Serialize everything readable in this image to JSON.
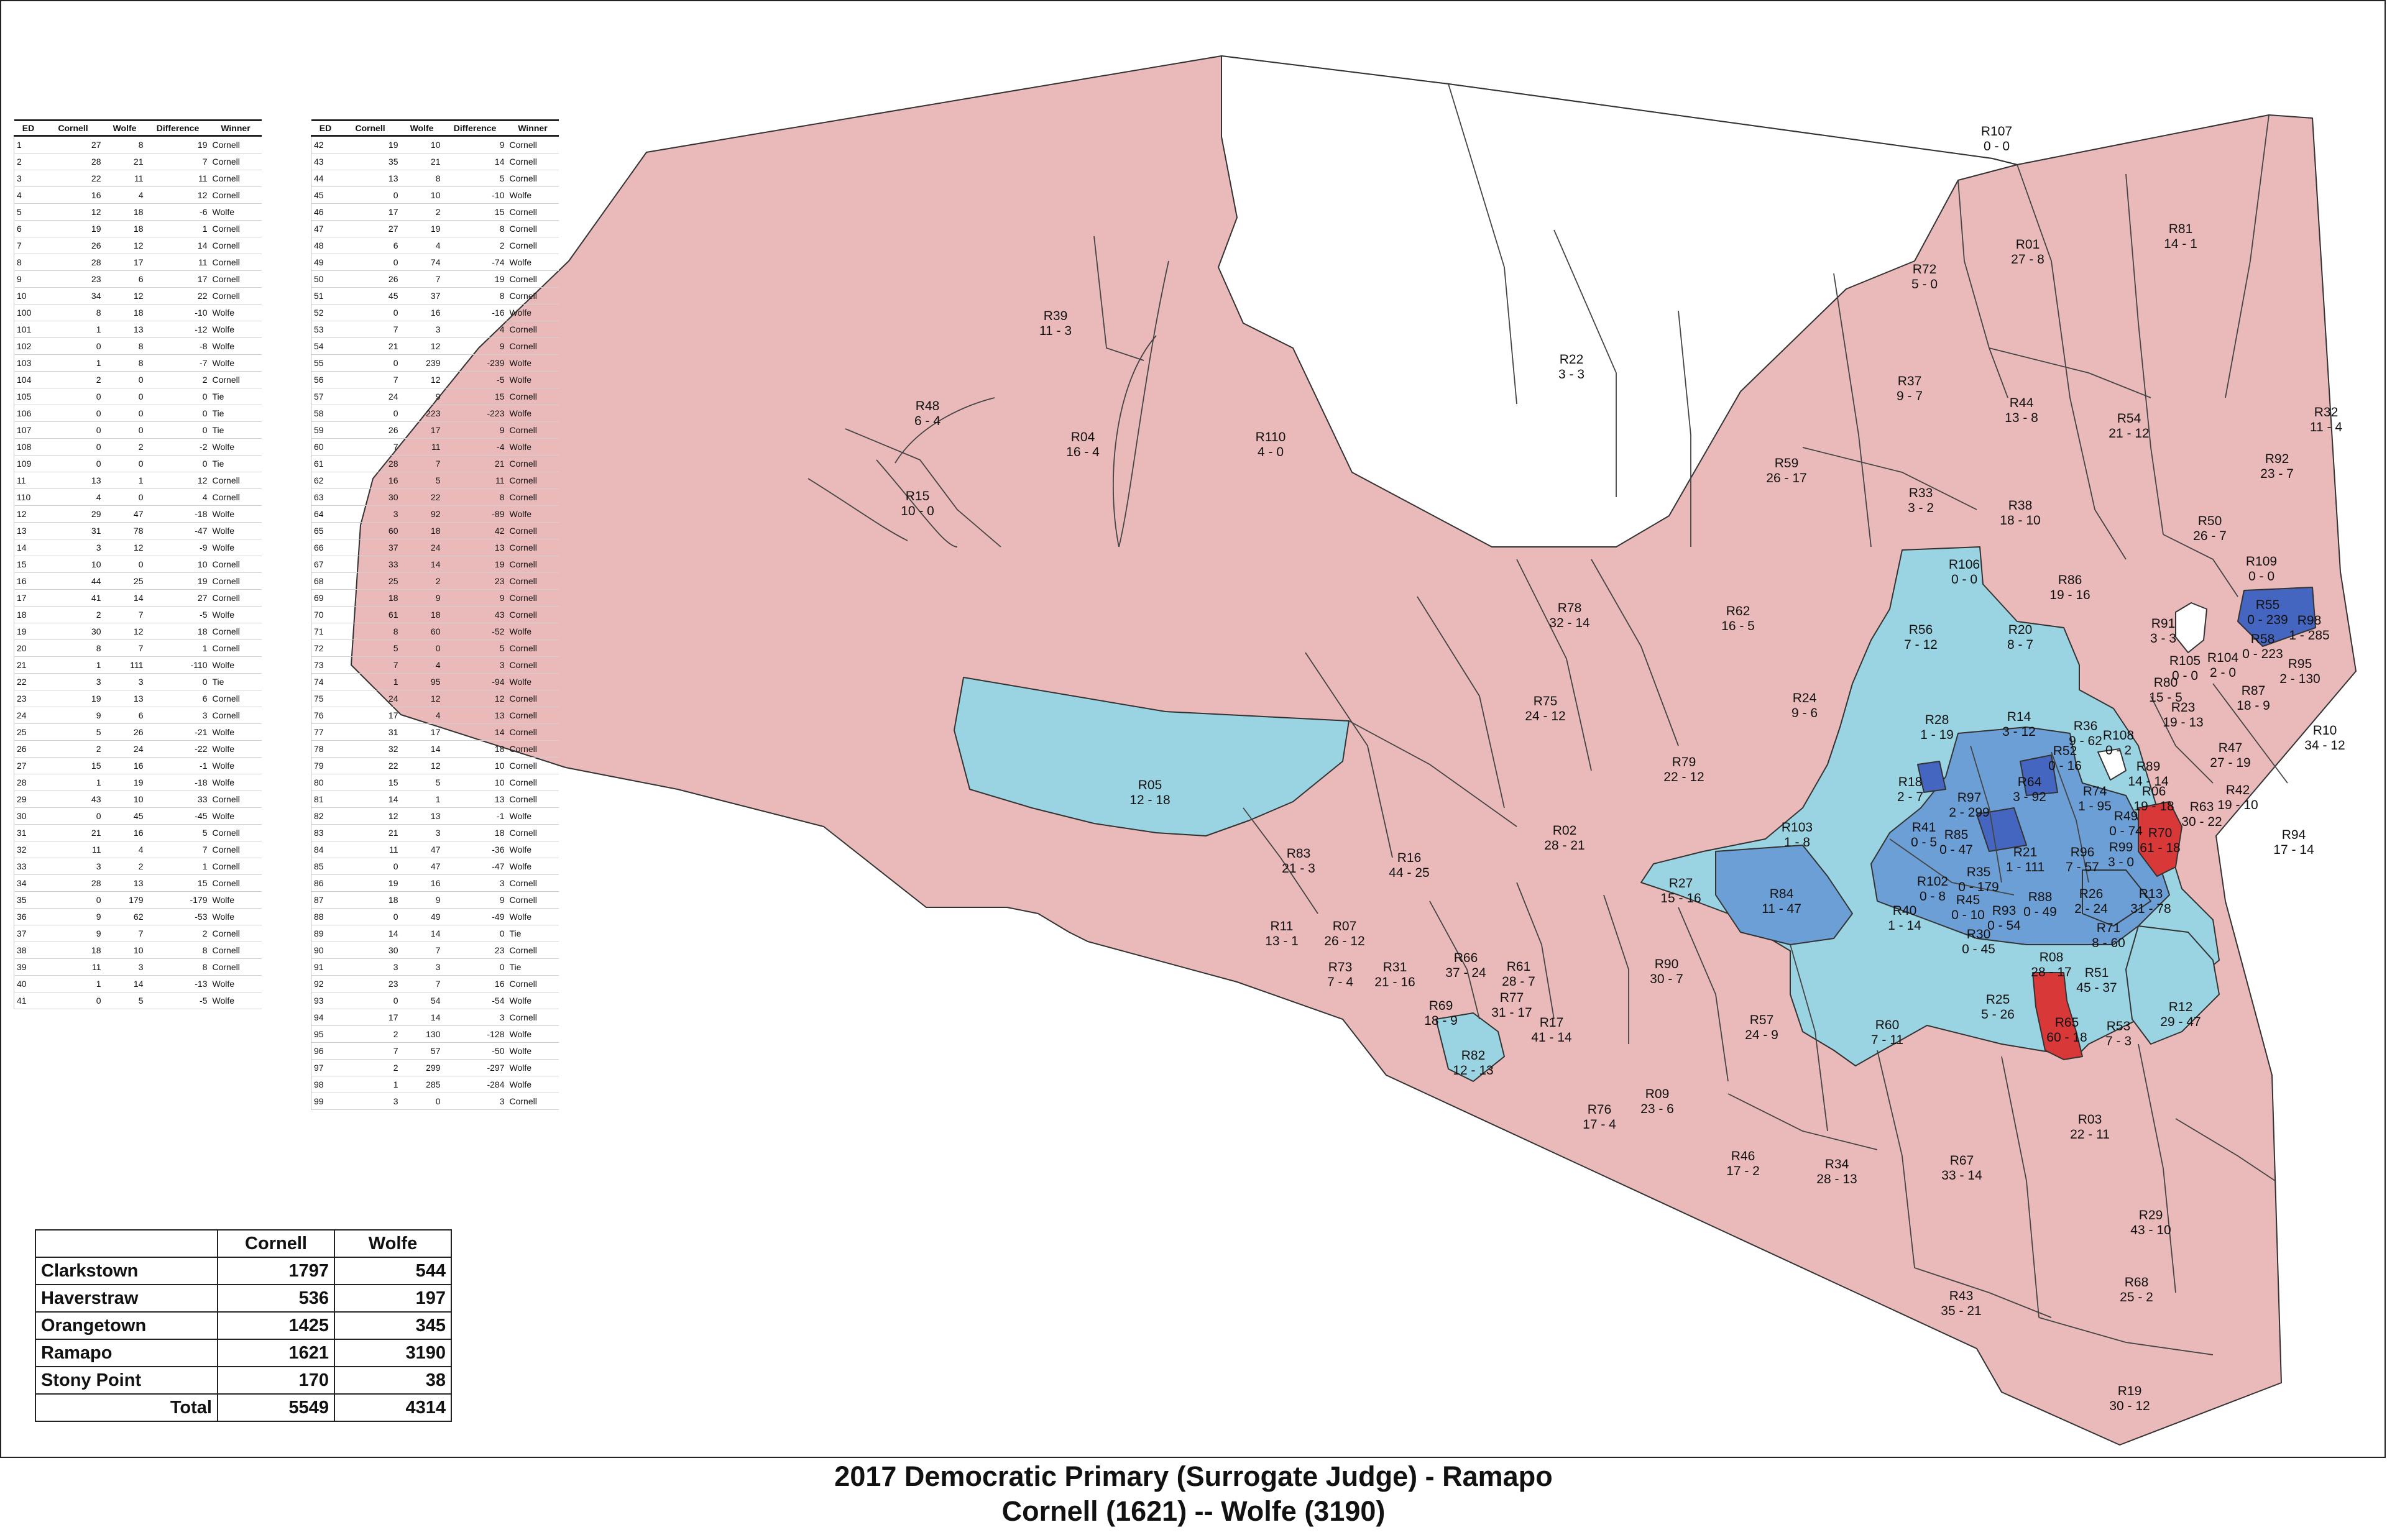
{
  "title": "2017 Democratic Primary (Surrogate Judge) - Ramapo",
  "subtitle": "Cornell (1621) -- Wolfe (3190)",
  "colors": {
    "cornell_win": "#eababa",
    "wolfe_light": "#9ad4e2",
    "wolfe_medium": "#6c9fd6",
    "wolfe_dark": "#4566c0",
    "cornell_strong": "#d93838",
    "tie": "#ffffff",
    "boundary": "#333333"
  },
  "results_table": {
    "columns": [
      "ED",
      "Cornell",
      "Wolfe",
      "Difference",
      "Winner"
    ],
    "left_rows": [
      [
        "1",
        "27",
        "8",
        "19",
        "Cornell"
      ],
      [
        "2",
        "28",
        "21",
        "7",
        "Cornell"
      ],
      [
        "3",
        "22",
        "11",
        "11",
        "Cornell"
      ],
      [
        "4",
        "16",
        "4",
        "12",
        "Cornell"
      ],
      [
        "5",
        "12",
        "18",
        "-6",
        "Wolfe"
      ],
      [
        "6",
        "19",
        "18",
        "1",
        "Cornell"
      ],
      [
        "7",
        "26",
        "12",
        "14",
        "Cornell"
      ],
      [
        "8",
        "28",
        "17",
        "11",
        "Cornell"
      ],
      [
        "9",
        "23",
        "6",
        "17",
        "Cornell"
      ],
      [
        "10",
        "34",
        "12",
        "22",
        "Cornell"
      ],
      [
        "100",
        "8",
        "18",
        "-10",
        "Wolfe"
      ],
      [
        "101",
        "1",
        "13",
        "-12",
        "Wolfe"
      ],
      [
        "102",
        "0",
        "8",
        "-8",
        "Wolfe"
      ],
      [
        "103",
        "1",
        "8",
        "-7",
        "Wolfe"
      ],
      [
        "104",
        "2",
        "0",
        "2",
        "Cornell"
      ],
      [
        "105",
        "0",
        "0",
        "0",
        "Tie"
      ],
      [
        "106",
        "0",
        "0",
        "0",
        "Tie"
      ],
      [
        "107",
        "0",
        "0",
        "0",
        "Tie"
      ],
      [
        "108",
        "0",
        "2",
        "-2",
        "Wolfe"
      ],
      [
        "109",
        "0",
        "0",
        "0",
        "Tie"
      ],
      [
        "11",
        "13",
        "1",
        "12",
        "Cornell"
      ],
      [
        "110",
        "4",
        "0",
        "4",
        "Cornell"
      ],
      [
        "12",
        "29",
        "47",
        "-18",
        "Wolfe"
      ],
      [
        "13",
        "31",
        "78",
        "-47",
        "Wolfe"
      ],
      [
        "14",
        "3",
        "12",
        "-9",
        "Wolfe"
      ],
      [
        "15",
        "10",
        "0",
        "10",
        "Cornell"
      ],
      [
        "16",
        "44",
        "25",
        "19",
        "Cornell"
      ],
      [
        "17",
        "41",
        "14",
        "27",
        "Cornell"
      ],
      [
        "18",
        "2",
        "7",
        "-5",
        "Wolfe"
      ],
      [
        "19",
        "30",
        "12",
        "18",
        "Cornell"
      ],
      [
        "20",
        "8",
        "7",
        "1",
        "Cornell"
      ],
      [
        "21",
        "1",
        "111",
        "-110",
        "Wolfe"
      ],
      [
        "22",
        "3",
        "3",
        "0",
        "Tie"
      ],
      [
        "23",
        "19",
        "13",
        "6",
        "Cornell"
      ],
      [
        "24",
        "9",
        "6",
        "3",
        "Cornell"
      ],
      [
        "25",
        "5",
        "26",
        "-21",
        "Wolfe"
      ],
      [
        "26",
        "2",
        "24",
        "-22",
        "Wolfe"
      ],
      [
        "27",
        "15",
        "16",
        "-1",
        "Wolfe"
      ],
      [
        "28",
        "1",
        "19",
        "-18",
        "Wolfe"
      ],
      [
        "29",
        "43",
        "10",
        "33",
        "Cornell"
      ],
      [
        "30",
        "0",
        "45",
        "-45",
        "Wolfe"
      ],
      [
        "31",
        "21",
        "16",
        "5",
        "Cornell"
      ],
      [
        "32",
        "11",
        "4",
        "7",
        "Cornell"
      ],
      [
        "33",
        "3",
        "2",
        "1",
        "Cornell"
      ],
      [
        "34",
        "28",
        "13",
        "15",
        "Cornell"
      ],
      [
        "35",
        "0",
        "179",
        "-179",
        "Wolfe"
      ],
      [
        "36",
        "9",
        "62",
        "-53",
        "Wolfe"
      ],
      [
        "37",
        "9",
        "7",
        "2",
        "Cornell"
      ],
      [
        "38",
        "18",
        "10",
        "8",
        "Cornell"
      ],
      [
        "39",
        "11",
        "3",
        "8",
        "Cornell"
      ],
      [
        "40",
        "1",
        "14",
        "-13",
        "Wolfe"
      ],
      [
        "41",
        "0",
        "5",
        "-5",
        "Wolfe"
      ]
    ],
    "right_rows": [
      [
        "42",
        "19",
        "10",
        "9",
        "Cornell"
      ],
      [
        "43",
        "35",
        "21",
        "14",
        "Cornell"
      ],
      [
        "44",
        "13",
        "8",
        "5",
        "Cornell"
      ],
      [
        "45",
        "0",
        "10",
        "-10",
        "Wolfe"
      ],
      [
        "46",
        "17",
        "2",
        "15",
        "Cornell"
      ],
      [
        "47",
        "27",
        "19",
        "8",
        "Cornell"
      ],
      [
        "48",
        "6",
        "4",
        "2",
        "Cornell"
      ],
      [
        "49",
        "0",
        "74",
        "-74",
        "Wolfe"
      ],
      [
        "50",
        "26",
        "7",
        "19",
        "Cornell"
      ],
      [
        "51",
        "45",
        "37",
        "8",
        "Cornell"
      ],
      [
        "52",
        "0",
        "16",
        "-16",
        "Wolfe"
      ],
      [
        "53",
        "7",
        "3",
        "4",
        "Cornell"
      ],
      [
        "54",
        "21",
        "12",
        "9",
        "Cornell"
      ],
      [
        "55",
        "0",
        "239",
        "-239",
        "Wolfe"
      ],
      [
        "56",
        "7",
        "12",
        "-5",
        "Wolfe"
      ],
      [
        "57",
        "24",
        "9",
        "15",
        "Cornell"
      ],
      [
        "58",
        "0",
        "223",
        "-223",
        "Wolfe"
      ],
      [
        "59",
        "26",
        "17",
        "9",
        "Cornell"
      ],
      [
        "60",
        "7",
        "11",
        "-4",
        "Wolfe"
      ],
      [
        "61",
        "28",
        "7",
        "21",
        "Cornell"
      ],
      [
        "62",
        "16",
        "5",
        "11",
        "Cornell"
      ],
      [
        "63",
        "30",
        "22",
        "8",
        "Cornell"
      ],
      [
        "64",
        "3",
        "92",
        "-89",
        "Wolfe"
      ],
      [
        "65",
        "60",
        "18",
        "42",
        "Cornell"
      ],
      [
        "66",
        "37",
        "24",
        "13",
        "Cornell"
      ],
      [
        "67",
        "33",
        "14",
        "19",
        "Cornell"
      ],
      [
        "68",
        "25",
        "2",
        "23",
        "Cornell"
      ],
      [
        "69",
        "18",
        "9",
        "9",
        "Cornell"
      ],
      [
        "70",
        "61",
        "18",
        "43",
        "Cornell"
      ],
      [
        "71",
        "8",
        "60",
        "-52",
        "Wolfe"
      ],
      [
        "72",
        "5",
        "0",
        "5",
        "Cornell"
      ],
      [
        "73",
        "7",
        "4",
        "3",
        "Cornell"
      ],
      [
        "74",
        "1",
        "95",
        "-94",
        "Wolfe"
      ],
      [
        "75",
        "24",
        "12",
        "12",
        "Cornell"
      ],
      [
        "76",
        "17",
        "4",
        "13",
        "Cornell"
      ],
      [
        "77",
        "31",
        "17",
        "14",
        "Cornell"
      ],
      [
        "78",
        "32",
        "14",
        "18",
        "Cornell"
      ],
      [
        "79",
        "22",
        "12",
        "10",
        "Cornell"
      ],
      [
        "80",
        "15",
        "5",
        "10",
        "Cornell"
      ],
      [
        "81",
        "14",
        "1",
        "13",
        "Cornell"
      ],
      [
        "82",
        "12",
        "13",
        "-1",
        "Wolfe"
      ],
      [
        "83",
        "21",
        "3",
        "18",
        "Cornell"
      ],
      [
        "84",
        "11",
        "47",
        "-36",
        "Wolfe"
      ],
      [
        "85",
        "0",
        "47",
        "-47",
        "Wolfe"
      ],
      [
        "86",
        "19",
        "16",
        "3",
        "Cornell"
      ],
      [
        "87",
        "18",
        "9",
        "9",
        "Cornell"
      ],
      [
        "88",
        "0",
        "49",
        "-49",
        "Wolfe"
      ],
      [
        "89",
        "14",
        "14",
        "0",
        "Tie"
      ],
      [
        "90",
        "30",
        "7",
        "23",
        "Cornell"
      ],
      [
        "91",
        "3",
        "3",
        "0",
        "Tie"
      ],
      [
        "92",
        "23",
        "7",
        "16",
        "Cornell"
      ],
      [
        "93",
        "0",
        "54",
        "-54",
        "Wolfe"
      ],
      [
        "94",
        "17",
        "14",
        "3",
        "Cornell"
      ],
      [
        "95",
        "2",
        "130",
        "-128",
        "Wolfe"
      ],
      [
        "96",
        "7",
        "57",
        "-50",
        "Wolfe"
      ],
      [
        "97",
        "2",
        "299",
        "-297",
        "Wolfe"
      ],
      [
        "98",
        "1",
        "285",
        "-284",
        "Wolfe"
      ],
      [
        "99",
        "3",
        "0",
        "3",
        "Cornell"
      ]
    ]
  },
  "summary": {
    "columns": [
      "",
      "Cornell",
      "Wolfe"
    ],
    "rows": [
      [
        "Clarkstown",
        "1797",
        "544"
      ],
      [
        "Haverstraw",
        "536",
        "197"
      ],
      [
        "Orangetown",
        "1425",
        "345"
      ],
      [
        "Ramapo",
        "1621",
        "3190"
      ],
      [
        "Stony Point",
        "170",
        "38"
      ]
    ],
    "total_label": "Total",
    "total_cornell": "5549",
    "total_wolfe": "4314"
  },
  "precincts": [
    [
      "R107",
      "0 - 0"
    ],
    [
      "R01",
      "27 - 8"
    ],
    [
      "R81",
      "14 - 1"
    ],
    [
      "R72",
      "5 - 0"
    ],
    [
      "R22",
      "3 - 3"
    ],
    [
      "R39",
      "11 - 3"
    ],
    [
      "R48",
      "6 - 4"
    ],
    [
      "R04",
      "16 - 4"
    ],
    [
      "R110",
      "4 - 0"
    ],
    [
      "R15",
      "10 - 0"
    ],
    [
      "R37",
      "9 - 7"
    ],
    [
      "R44",
      "13 - 8"
    ],
    [
      "R54",
      "21 - 12"
    ],
    [
      "R32",
      "11 - 4"
    ],
    [
      "R92",
      "23 - 7"
    ],
    [
      "R59",
      "26 - 17"
    ],
    [
      "R33",
      "3 - 2"
    ],
    [
      "R38",
      "18 - 10"
    ],
    [
      "R50",
      "26 - 7"
    ],
    [
      "R109",
      "0 - 0"
    ],
    [
      "R106",
      "0 - 0"
    ],
    [
      "R86",
      "19 - 16"
    ],
    [
      "R55",
      "0 - 239"
    ],
    [
      "R98",
      "1 - 285"
    ],
    [
      "R78",
      "32 - 14"
    ],
    [
      "R62",
      "16 - 5"
    ],
    [
      "R56",
      "7 - 12"
    ],
    [
      "R20",
      "8 - 7"
    ],
    [
      "R91",
      "3 - 3"
    ],
    [
      "R58",
      "0 - 223"
    ],
    [
      "R104",
      "2 - 0"
    ],
    [
      "R95",
      "2 - 130"
    ],
    [
      "R24",
      "9 - 6"
    ],
    [
      "R105",
      "0 - 0"
    ],
    [
      "R80",
      "15 - 5"
    ],
    [
      "R23",
      "19 - 13"
    ],
    [
      "R87",
      "18 - 9"
    ],
    [
      "R75",
      "24 - 12"
    ],
    [
      "R28",
      "1 - 19"
    ],
    [
      "R14",
      "3 - 12"
    ],
    [
      "R36",
      "9 - 62"
    ],
    [
      "R108",
      "0 - 2"
    ],
    [
      "R47",
      "27 - 19"
    ],
    [
      "R10",
      "34 - 12"
    ],
    [
      "R79",
      "22 - 12"
    ],
    [
      "R52",
      "0 - 16"
    ],
    [
      "R89",
      "14 - 14"
    ],
    [
      "R05",
      "12 - 18"
    ],
    [
      "R18",
      "2 - 7"
    ],
    [
      "R64",
      "3 - 92"
    ],
    [
      "R74",
      "1 - 95"
    ],
    [
      "R06",
      "19 - 18"
    ],
    [
      "R42",
      "19 - 10"
    ],
    [
      "R97",
      "2 - 299"
    ],
    [
      "R63",
      "30 - 22"
    ],
    [
      "R103",
      "1 - 8"
    ],
    [
      "R49",
      "0 - 74"
    ],
    [
      "R02",
      "28 - 21"
    ],
    [
      "R41",
      "0 - 5"
    ],
    [
      "R85",
      "0 - 47"
    ],
    [
      "R70",
      "61 - 18"
    ],
    [
      "R94",
      "17 - 14"
    ],
    [
      "R83",
      "21 - 3"
    ],
    [
      "R16",
      "44 - 25"
    ],
    [
      "R21",
      "1 - 111"
    ],
    [
      "R96",
      "7 - 57"
    ],
    [
      "R99",
      "3 - 0"
    ],
    [
      "R35",
      "0 - 179"
    ],
    [
      "R27",
      "15 - 16"
    ],
    [
      "R102",
      "0 - 8"
    ],
    [
      "R26",
      "2 - 24"
    ],
    [
      "R13",
      "31 - 78"
    ],
    [
      "R84",
      "11 - 47"
    ],
    [
      "R45",
      "0 - 10"
    ],
    [
      "R88",
      "0 - 49"
    ],
    [
      "R93",
      "0 - 54"
    ],
    [
      "R11",
      "13 - 1"
    ],
    [
      "R07",
      "26 - 12"
    ],
    [
      "R40",
      "1 - 14"
    ],
    [
      "R71",
      "8 - 60"
    ],
    [
      "R30",
      "0 - 45"
    ],
    [
      "R73",
      "7 - 4"
    ],
    [
      "R31",
      "21 - 16"
    ],
    [
      "R66",
      "37 - 24"
    ],
    [
      "R61",
      "28 - 7"
    ],
    [
      "R90",
      "30 - 7"
    ],
    [
      "R08",
      "28 - 17"
    ],
    [
      "R51",
      "45 - 37"
    ],
    [
      "R77",
      "31 - 17"
    ],
    [
      "R12",
      "29 - 47"
    ],
    [
      "R25",
      "5 - 26"
    ],
    [
      "R69",
      "18 - 9"
    ],
    [
      "R17",
      "41 - 14"
    ],
    [
      "R57",
      "24 - 9"
    ],
    [
      "R53",
      "7 - 3"
    ],
    [
      "R60",
      "7 - 11"
    ],
    [
      "R65",
      "60 - 18"
    ],
    [
      "R82",
      "12 - 13"
    ],
    [
      "R09",
      "23 - 6"
    ],
    [
      "R76",
      "17 - 4"
    ],
    [
      "R03",
      "22 - 11"
    ],
    [
      "R46",
      "17 - 2"
    ],
    [
      "R34",
      "28 - 13"
    ],
    [
      "R67",
      "33 - 14"
    ],
    [
      "R29",
      "43 - 10"
    ],
    [
      "R68",
      "25 - 2"
    ],
    [
      "R43",
      "35 - 21"
    ],
    [
      "R19",
      "30 - 12"
    ]
  ]
}
